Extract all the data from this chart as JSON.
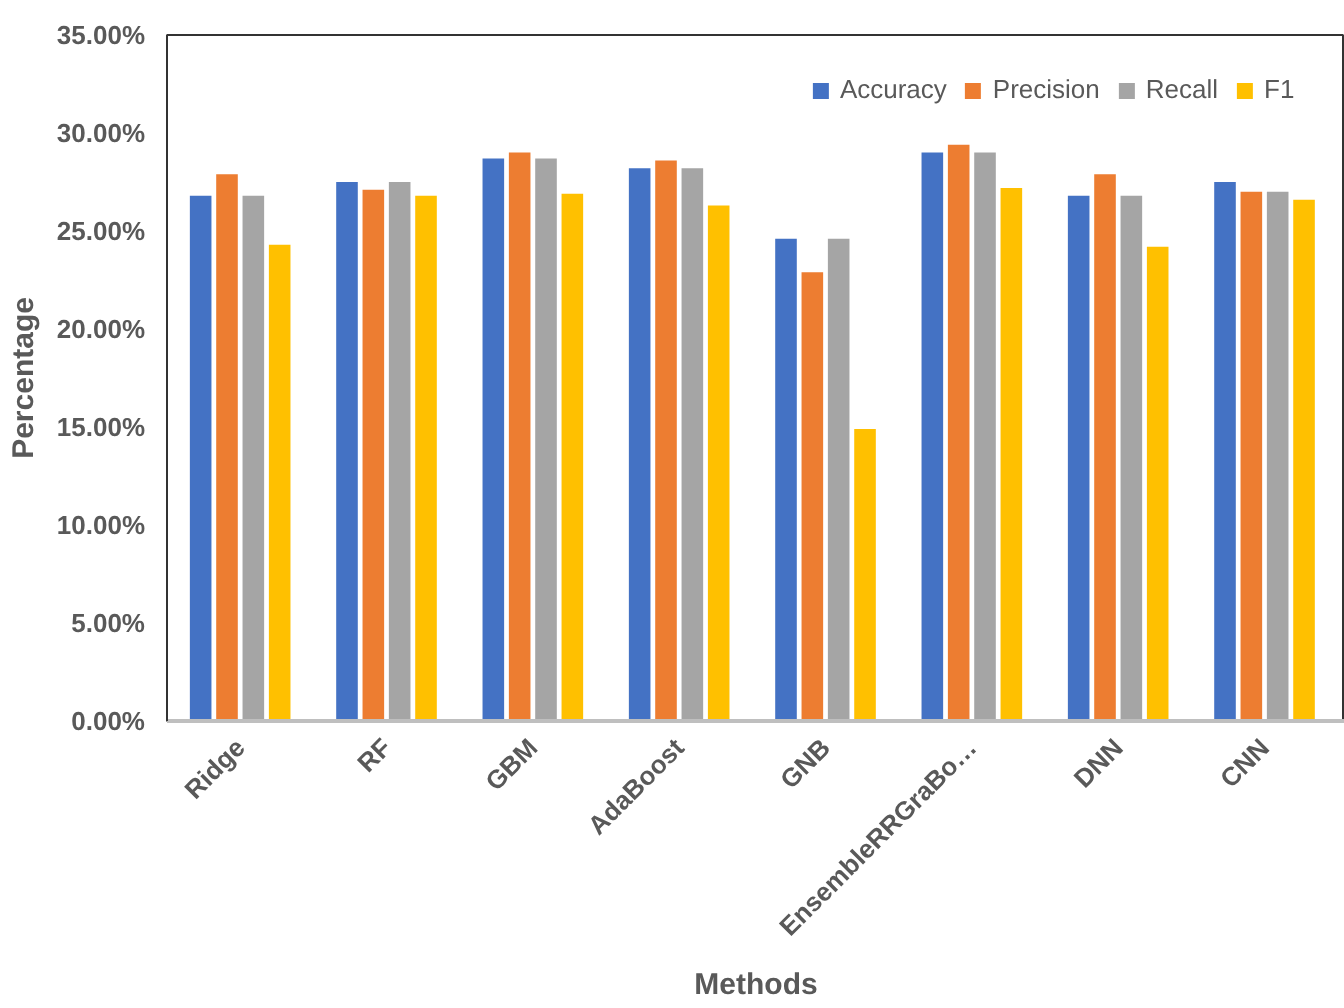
{
  "chart_data": {
    "type": "bar",
    "xlabel": "Methods",
    "ylabel": "Percentage",
    "categories": [
      "Ridge",
      "RF",
      "GBM",
      "AdaBoost",
      "GNB",
      "EnsembleRRGraBo…",
      "DNN",
      "CNN"
    ],
    "series": [
      {
        "name": "Accuracy",
        "color": "#4472c4",
        "values": [
          26.8,
          27.5,
          28.7,
          28.2,
          24.6,
          29.0,
          26.8,
          27.5
        ]
      },
      {
        "name": "Precision",
        "color": "#ed7d31",
        "values": [
          27.9,
          27.1,
          29.0,
          28.6,
          22.9,
          29.4,
          27.9,
          27.0
        ]
      },
      {
        "name": "Recall",
        "color": "#a5a5a5",
        "values": [
          26.8,
          27.5,
          28.7,
          28.2,
          24.6,
          29.0,
          26.8,
          27.0
        ]
      },
      {
        "name": "F1",
        "color": "#ffc000",
        "values": [
          24.3,
          26.8,
          26.9,
          26.3,
          14.9,
          27.2,
          24.2,
          26.6
        ]
      }
    ],
    "ylim": [
      0,
      35
    ],
    "yticks": [
      {
        "value": 0,
        "label": "0.00%"
      },
      {
        "value": 5,
        "label": "5.00%"
      },
      {
        "value": 10,
        "label": "10.00%"
      },
      {
        "value": 15,
        "label": "15.00%"
      },
      {
        "value": 20,
        "label": "20.00%"
      },
      {
        "value": 25,
        "label": "25.00%"
      },
      {
        "value": 30,
        "label": "30.00%"
      },
      {
        "value": 35,
        "label": "35.00%"
      }
    ],
    "grid": false,
    "legend": "top right"
  }
}
